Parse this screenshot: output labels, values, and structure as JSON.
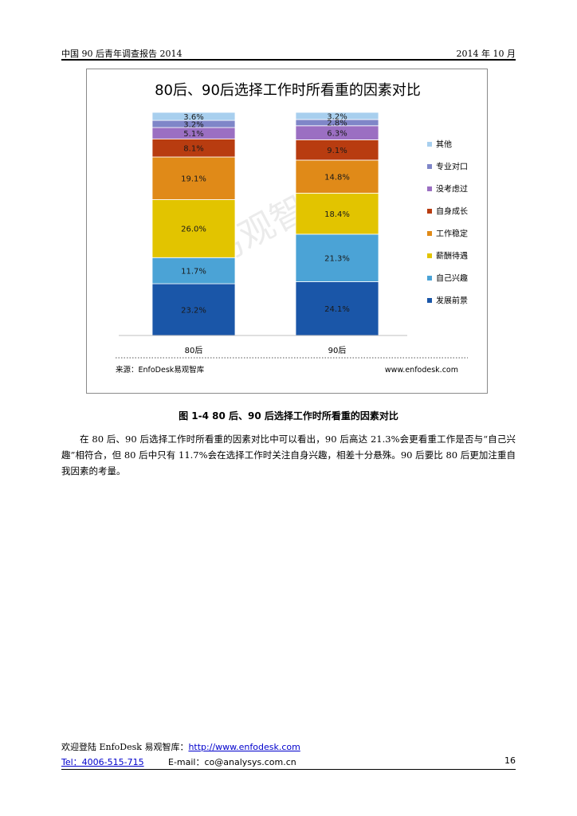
{
  "header": {
    "left": "中国 90 后青年调查报告 2014",
    "right": "2014 年 10 月"
  },
  "chart_data": {
    "type": "bar",
    "stacked": true,
    "title": "80后、90后选择工作时所看重的因素对比",
    "categories": [
      "80后",
      "90后"
    ],
    "series": [
      {
        "name": "发展前景",
        "color": "#1a56a8",
        "values": [
          23.2,
          24.1
        ]
      },
      {
        "name": "自己兴趣",
        "color": "#4ba3d6",
        "values": [
          11.7,
          21.3
        ]
      },
      {
        "name": "薪酬待遇",
        "color": "#e2c400",
        "values": [
          26.0,
          18.4
        ]
      },
      {
        "name": "工作稳定",
        "color": "#e08a18",
        "values": [
          19.1,
          14.8
        ]
      },
      {
        "name": "自身成长",
        "color": "#b83c10",
        "values": [
          8.1,
          9.1
        ]
      },
      {
        "name": "没考虑过",
        "color": "#9b6fc2",
        "values": [
          5.1,
          6.3
        ]
      },
      {
        "name": "专业对口",
        "color": "#7f86c8",
        "values": [
          3.2,
          2.8
        ]
      },
      {
        "name": "其他",
        "color": "#a8cfee",
        "values": [
          3.6,
          3.2
        ]
      }
    ],
    "data_labels": [
      [
        "23.2%",
        "24.1%"
      ],
      [
        "11.7%",
        "21.3%"
      ],
      [
        "26.0%",
        "18.4%"
      ],
      [
        "19.1%",
        "14.8%"
      ],
      [
        "8.1%",
        "9.1%"
      ],
      [
        "5.1%",
        "6.3%"
      ],
      [
        "3.2%",
        "2.8%"
      ],
      [
        "3.6%",
        "3.2%"
      ]
    ],
    "legend_order": [
      "其他",
      "专业对口",
      "没考虑过",
      "自身成长",
      "工作稳定",
      "薪酬待遇",
      "自己兴趣",
      "发展前景"
    ],
    "legend_position": "right",
    "source": "来源：EnfoDesk易观智库",
    "site": "www.enfodesk.com",
    "watermark": "易观智库"
  },
  "figure": {
    "caption": "图 1-4   80 后、90 后选择工作时所看重的因素对比"
  },
  "body": {
    "paragraph": "在 80 后、90 后选择工作时所看重的因素对比中可以看出，90 后高达 21.3%会更看重工作是否与“自己兴趣”相符合，但 80 后中只有 11.7%会在选择工作时关注自身兴趣，相差十分悬殊。90 后要比 80 后更加注重自我因素的考量。"
  },
  "footer": {
    "welcome": "欢迎登陆 EnfoDesk 易观智库：",
    "url": "http://www.enfodesk.com",
    "tel": "Tel：4006-515-715",
    "email": "E-mail：co@analysys.com.cn",
    "page": "16"
  }
}
